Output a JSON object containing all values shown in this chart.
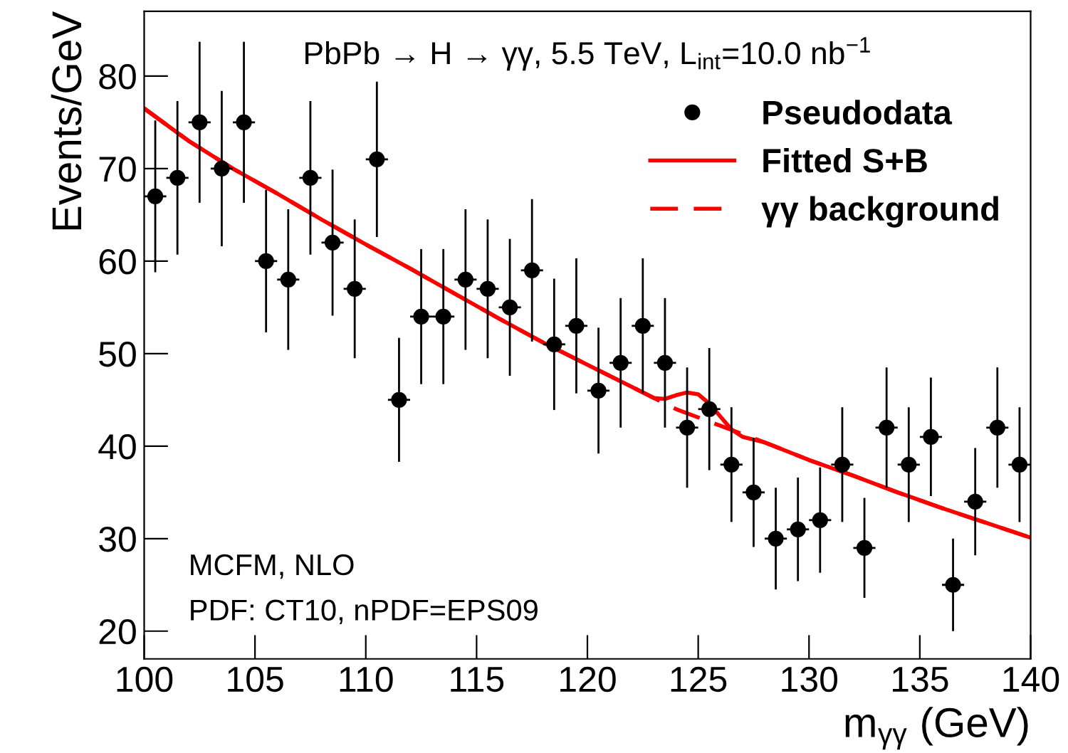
{
  "chart_data": {
    "type": "scatter",
    "title": "PbPb → H → γγ, 5.5 TeV, L$_{int}$=10.0 nb$^{−1}$",
    "xlabel": "m$_{γγ}$ (GeV)",
    "ylabel": "Events/GeV",
    "annotations": [
      "MCFM, NLO",
      "PDF: CT10, nPDF=EPS09"
    ],
    "xlim": [
      100,
      140
    ],
    "xticks": [
      100,
      105,
      110,
      115,
      120,
      125,
      130,
      135,
      140
    ],
    "ylim": [
      17,
      87
    ],
    "yticks": [
      20,
      30,
      40,
      50,
      60,
      70,
      80
    ],
    "grid": false,
    "legend": "top right",
    "series": [
      {
        "name": "Pseudodata",
        "color": "#000000",
        "marker": "circle",
        "x": [
          100.5,
          101.5,
          102.5,
          103.5,
          104.5,
          105.5,
          106.5,
          107.5,
          108.5,
          109.5,
          110.5,
          111.5,
          112.5,
          113.5,
          114.5,
          115.5,
          116.5,
          117.5,
          118.5,
          119.5,
          120.5,
          121.5,
          122.5,
          123.5,
          124.5,
          125.5,
          126.5,
          127.5,
          128.5,
          129.5,
          130.5,
          131.5,
          132.5,
          133.5,
          134.5,
          135.5,
          136.5,
          137.5,
          138.5,
          139.5
        ],
        "values": [
          67,
          69,
          75,
          70,
          75,
          60,
          58,
          69,
          62,
          57,
          71,
          45,
          54,
          54,
          58,
          57,
          55,
          59,
          51,
          53,
          46,
          49,
          53,
          49,
          42,
          44,
          38,
          35,
          30,
          31,
          32,
          38,
          29,
          42,
          38,
          41,
          25,
          34,
          42,
          38
        ],
        "errors": [
          8.2,
          8.3,
          8.7,
          8.4,
          8.7,
          7.7,
          7.6,
          8.3,
          7.9,
          7.5,
          8.4,
          6.7,
          7.3,
          7.3,
          7.6,
          7.5,
          7.4,
          7.7,
          7.1,
          7.3,
          6.8,
          7.0,
          7.3,
          7.0,
          6.5,
          6.6,
          6.2,
          5.9,
          5.5,
          5.6,
          5.7,
          6.2,
          5.4,
          6.5,
          6.2,
          6.4,
          5.0,
          5.8,
          6.5,
          6.2
        ],
        "xerrors": [
          0.5,
          0.5,
          0.5,
          0.5,
          0.5,
          0.5,
          0.5,
          0.5,
          0.5,
          0.5,
          0.5,
          0.5,
          0.5,
          0.5,
          0.5,
          0.5,
          0.5,
          0.5,
          0.5,
          0.5,
          0.5,
          0.5,
          0.5,
          0.5,
          0.5,
          0.5,
          0.5,
          0.5,
          0.5,
          0.5,
          0.5,
          0.5,
          0.5,
          0.5,
          0.5,
          0.5,
          0.5,
          0.5,
          0.5,
          0.5
        ]
      },
      {
        "name": "Fitted S+B",
        "type": "line",
        "color": "#ff0000",
        "line_style": "solid",
        "x": [
          100,
          102,
          104,
          106,
          108,
          110,
          112,
          114,
          116,
          118,
          120,
          122,
          123,
          123.5,
          124,
          124.5,
          125,
          125.5,
          126,
          126.5,
          127,
          128,
          130,
          132,
          134,
          136,
          138,
          140
        ],
        "values": [
          76.5,
          73,
          70,
          67.3,
          64.5,
          61.8,
          59.2,
          56.5,
          53.8,
          51.2,
          48.8,
          46.4,
          45.2,
          45.1,
          45.5,
          45.8,
          45.6,
          44.6,
          43.2,
          41.8,
          41.0,
          40.4,
          38.5,
          36.8,
          35,
          33.3,
          31.7,
          30.1
        ]
      },
      {
        "name": "γγ background",
        "type": "line",
        "color": "#ff0000",
        "line_style": "dashed",
        "x": [
          100,
          102,
          104,
          106,
          108,
          110,
          112,
          114,
          116,
          118,
          120,
          122,
          124,
          126,
          128,
          130,
          132,
          134,
          136,
          138,
          140
        ],
        "values": [
          76.5,
          73,
          70,
          67.3,
          64.5,
          61.8,
          59.2,
          56.5,
          53.8,
          51.2,
          48.8,
          46.4,
          44,
          42.2,
          40.4,
          38.5,
          36.8,
          35,
          33.3,
          31.7,
          30.1
        ]
      }
    ]
  }
}
